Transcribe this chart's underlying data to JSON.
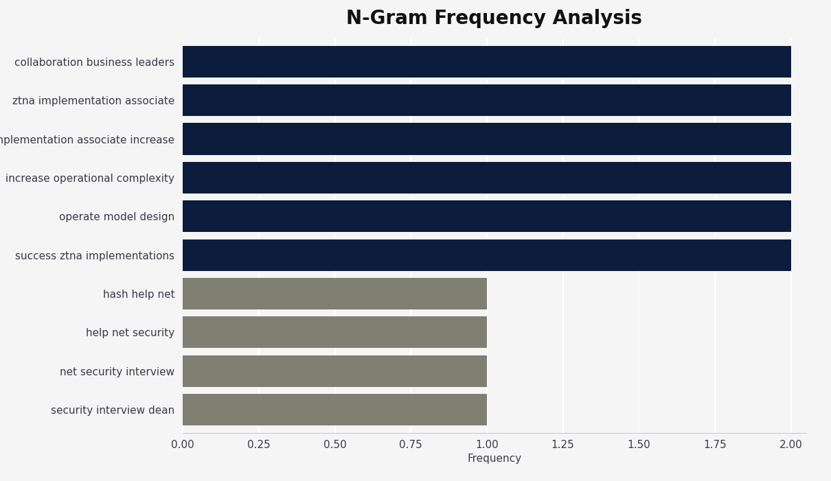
{
  "title": "N-Gram Frequency Analysis",
  "categories": [
    "security interview dean",
    "net security interview",
    "help net security",
    "hash help net",
    "success ztna implementations",
    "operate model design",
    "increase operational complexity",
    "implementation associate increase",
    "ztna implementation associate",
    "collaboration business leaders"
  ],
  "values": [
    1,
    1,
    1,
    1,
    2,
    2,
    2,
    2,
    2,
    2
  ],
  "colors": [
    "#7f7f72",
    "#7f7f72",
    "#7f7f72",
    "#7f7f72",
    "#0c1c3d",
    "#0c1c3d",
    "#0c1c3d",
    "#0c1c3d",
    "#0c1c3d",
    "#0c1c3d"
  ],
  "xlabel": "Frequency",
  "xlim": [
    0,
    2.05
  ],
  "xticks": [
    0.0,
    0.25,
    0.5,
    0.75,
    1.0,
    1.25,
    1.5,
    1.75,
    2.0
  ],
  "background_color": "#f5f5f5",
  "title_fontsize": 20,
  "label_fontsize": 11,
  "tick_fontsize": 11
}
